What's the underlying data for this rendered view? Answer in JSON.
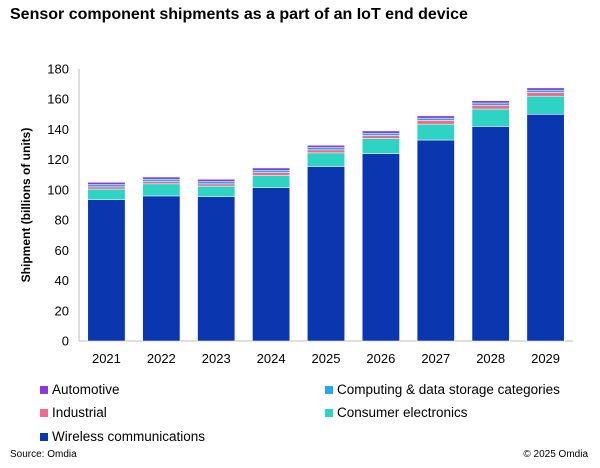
{
  "chart_data": {
    "type": "bar",
    "stacked": true,
    "title": "Sensor component shipments as a part of an IoT end device",
    "xlabel": "",
    "ylabel": "Shipment (billions of units)",
    "ylim": [
      0,
      180
    ],
    "yticks": [
      0,
      20,
      40,
      60,
      80,
      100,
      120,
      140,
      160,
      180
    ],
    "grid": false,
    "categories": [
      "2021",
      "2022",
      "2023",
      "2024",
      "2025",
      "2026",
      "2027",
      "2028",
      "2029"
    ],
    "series": [
      {
        "name": "Wireless communications",
        "color": "#0a37b0",
        "values": [
          93.5,
          96,
          95.5,
          101.5,
          115.5,
          124,
          133,
          142,
          150
        ]
      },
      {
        "name": "Consumer electronics",
        "color": "#2ed3c3",
        "values": [
          7,
          8,
          7,
          8,
          9,
          10,
          10.5,
          11.5,
          12
        ]
      },
      {
        "name": "Industrial",
        "color": "#f06a8a",
        "values": [
          1.5,
          1.5,
          1.5,
          2,
          2,
          2,
          2.5,
          2.5,
          2.5
        ]
      },
      {
        "name": "Computing & data storage categories",
        "color": "#2aa6e6",
        "values": [
          1.5,
          1.5,
          1.5,
          1.5,
          1.5,
          1.5,
          1.5,
          1.5,
          1.5
        ]
      },
      {
        "name": "Automotive",
        "color": "#8a3ad8",
        "values": [
          1.5,
          1.5,
          1.5,
          1.5,
          1.5,
          1.5,
          1.5,
          1.5,
          1.5
        ]
      }
    ],
    "legend_position": "bottom"
  },
  "legend": {
    "automotive": "Automotive",
    "computing": "Computing & data storage categories",
    "industrial": "Industrial",
    "consumer": "Consumer electronics",
    "wireless": "Wireless communications"
  },
  "colors": {
    "automotive": "#8a3ad8",
    "computing": "#2aa6e6",
    "industrial": "#f06a8a",
    "consumer": "#2ed3c3",
    "wireless": "#0a37b0"
  },
  "footer": {
    "source": "Source: Omdia",
    "copyright": "© 2025 Omdia"
  }
}
